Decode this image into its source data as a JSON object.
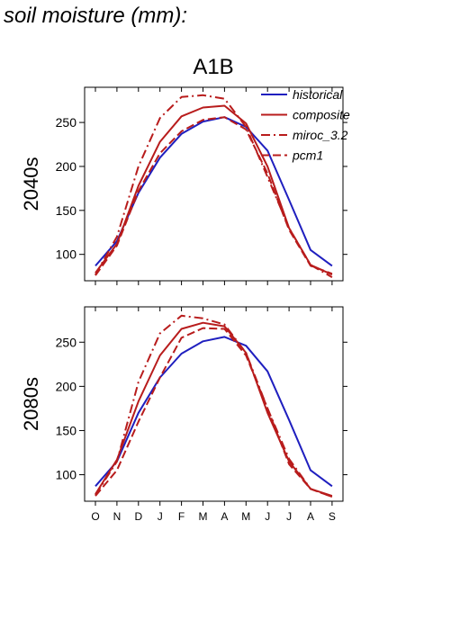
{
  "page_title": "soil moisture (mm):",
  "colors": {
    "historical": "#1f1fbf",
    "future": "#b81c1c",
    "axis": "#000000"
  },
  "chart_data": {
    "type": "line",
    "title": "A1B",
    "months": [
      "O",
      "N",
      "D",
      "J",
      "F",
      "M",
      "A",
      "M",
      "J",
      "J",
      "A",
      "S"
    ],
    "legend": {
      "placement": "top-right",
      "entries": [
        "historical",
        "composite",
        "miroc_3.2",
        "pcm1"
      ]
    },
    "panels": [
      {
        "label": "2040s",
        "ylim": [
          70,
          290
        ],
        "yticks": [
          100,
          150,
          200,
          250
        ],
        "series": [
          {
            "name": "historical",
            "style": "solid",
            "values": [
              87,
              115,
              170,
              210,
              237,
              251,
              256,
              245,
              218,
              162,
              105,
              87
            ]
          },
          {
            "name": "composite",
            "style": "solid",
            "values": [
              79,
              112,
              178,
              228,
              257,
              267,
              269,
              249,
              200,
              130,
              88,
              77
            ]
          },
          {
            "name": "miroc_3.2",
            "style": "dashdot",
            "values": [
              77,
              120,
              200,
              255,
              279,
              281,
              277,
              245,
              188,
              130,
              88,
              74
            ]
          },
          {
            "name": "pcm1",
            "style": "dashed",
            "values": [
              76,
              110,
              172,
              215,
              240,
              253,
              256,
              242,
              192,
              128,
              87,
              78
            ]
          }
        ]
      },
      {
        "label": "2080s",
        "ylim": [
          70,
          290
        ],
        "yticks": [
          100,
          150,
          200,
          250
        ],
        "series": [
          {
            "name": "historical",
            "style": "solid",
            "values": [
              87,
              115,
              170,
              210,
              237,
              251,
              256,
              246,
              217,
              162,
              105,
              87
            ]
          },
          {
            "name": "composite",
            "style": "solid",
            "values": [
              78,
              117,
              183,
              235,
              265,
              272,
              268,
              238,
              170,
              115,
              84,
              76
            ]
          },
          {
            "name": "miroc_3.2",
            "style": "dashdot",
            "values": [
              77,
              115,
              205,
              260,
              280,
              277,
              270,
              238,
              175,
              118,
              84,
              75
            ]
          },
          {
            "name": "pcm1",
            "style": "dashed",
            "values": [
              76,
              105,
              160,
              210,
              255,
              266,
              265,
              235,
              175,
              112,
              84,
              75
            ]
          }
        ]
      }
    ]
  }
}
